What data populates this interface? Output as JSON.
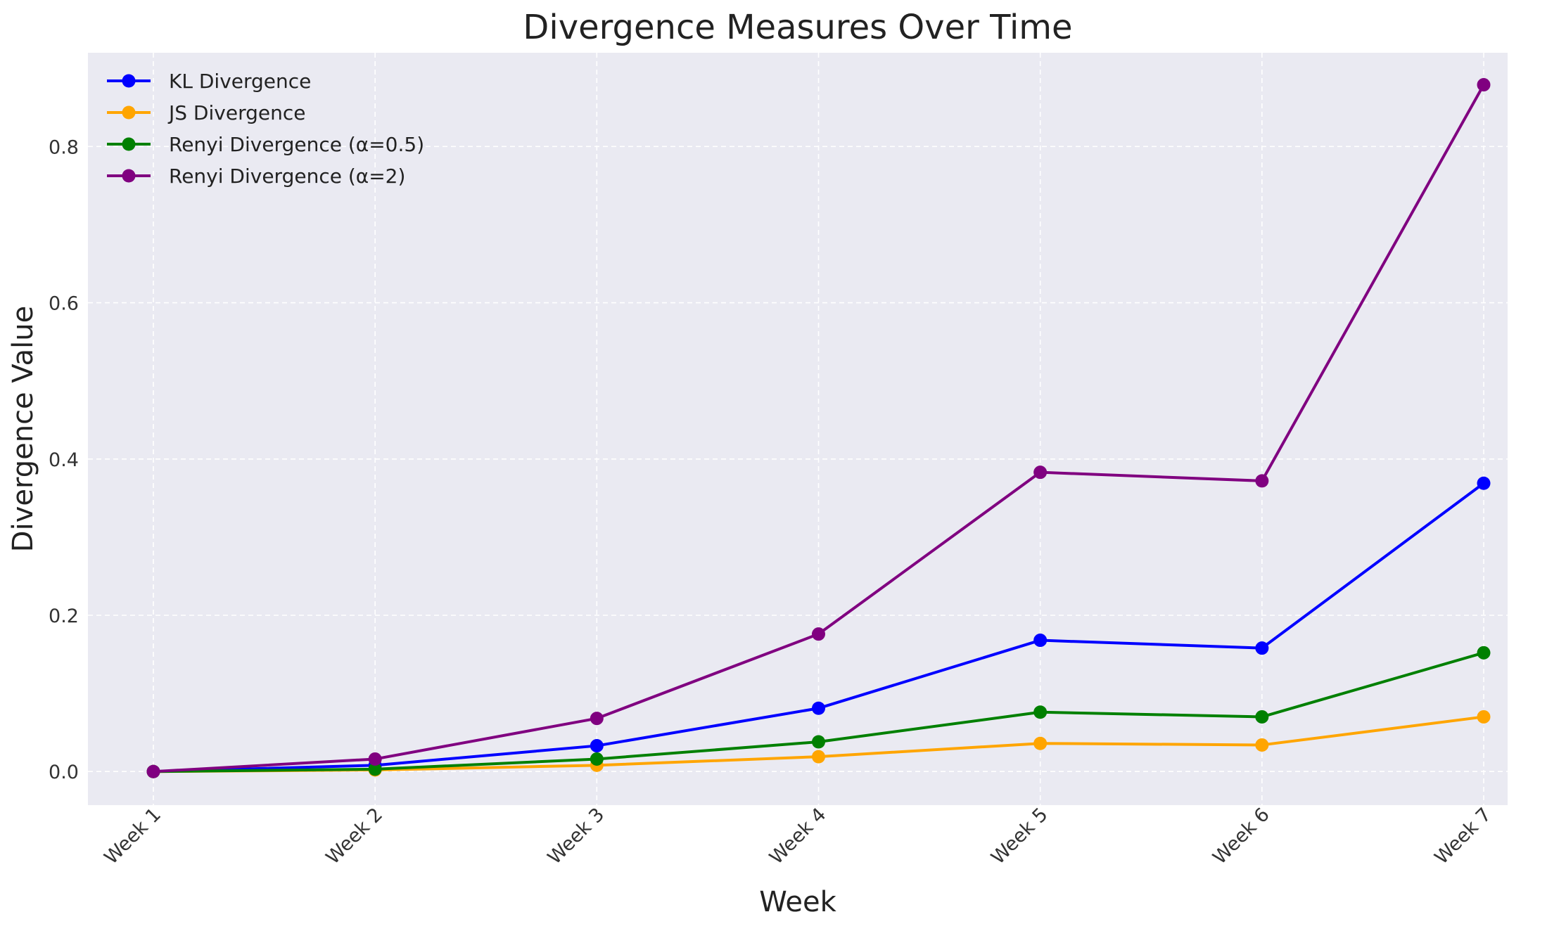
{
  "chart_data": {
    "type": "line",
    "title": "Divergence Measures Over Time",
    "xlabel": "Week",
    "ylabel": "Divergence Value",
    "categories": [
      "Week 1",
      "Week 2",
      "Week 3",
      "Week 4",
      "Week 5",
      "Week 6",
      "Week 7"
    ],
    "ylim": [
      -0.043,
      0.92
    ],
    "yticks": [
      0.0,
      0.2,
      0.4,
      0.6,
      0.8
    ],
    "ytick_labels": [
      "0.0",
      "0.2",
      "0.4",
      "0.6",
      "0.8"
    ],
    "grid": true,
    "legend_position": "top-left",
    "background_color": "#eaeaf2",
    "series": [
      {
        "name": "KL Divergence",
        "color": "#0000ff",
        "values": [
          0.0,
          0.008,
          0.033,
          0.081,
          0.168,
          0.158,
          0.369
        ]
      },
      {
        "name": "JS Divergence",
        "color": "#ffa500",
        "values": [
          0.0,
          0.002,
          0.008,
          0.019,
          0.036,
          0.034,
          0.07
        ]
      },
      {
        "name": "Renyi Divergence (α=0.5)",
        "color": "#008000",
        "values": [
          0.0,
          0.003,
          0.016,
          0.038,
          0.076,
          0.07,
          0.152
        ]
      },
      {
        "name": "Renyi Divergence (α=2)",
        "color": "#800080",
        "values": [
          0.0,
          0.016,
          0.068,
          0.176,
          0.383,
          0.372,
          0.879
        ]
      }
    ]
  }
}
